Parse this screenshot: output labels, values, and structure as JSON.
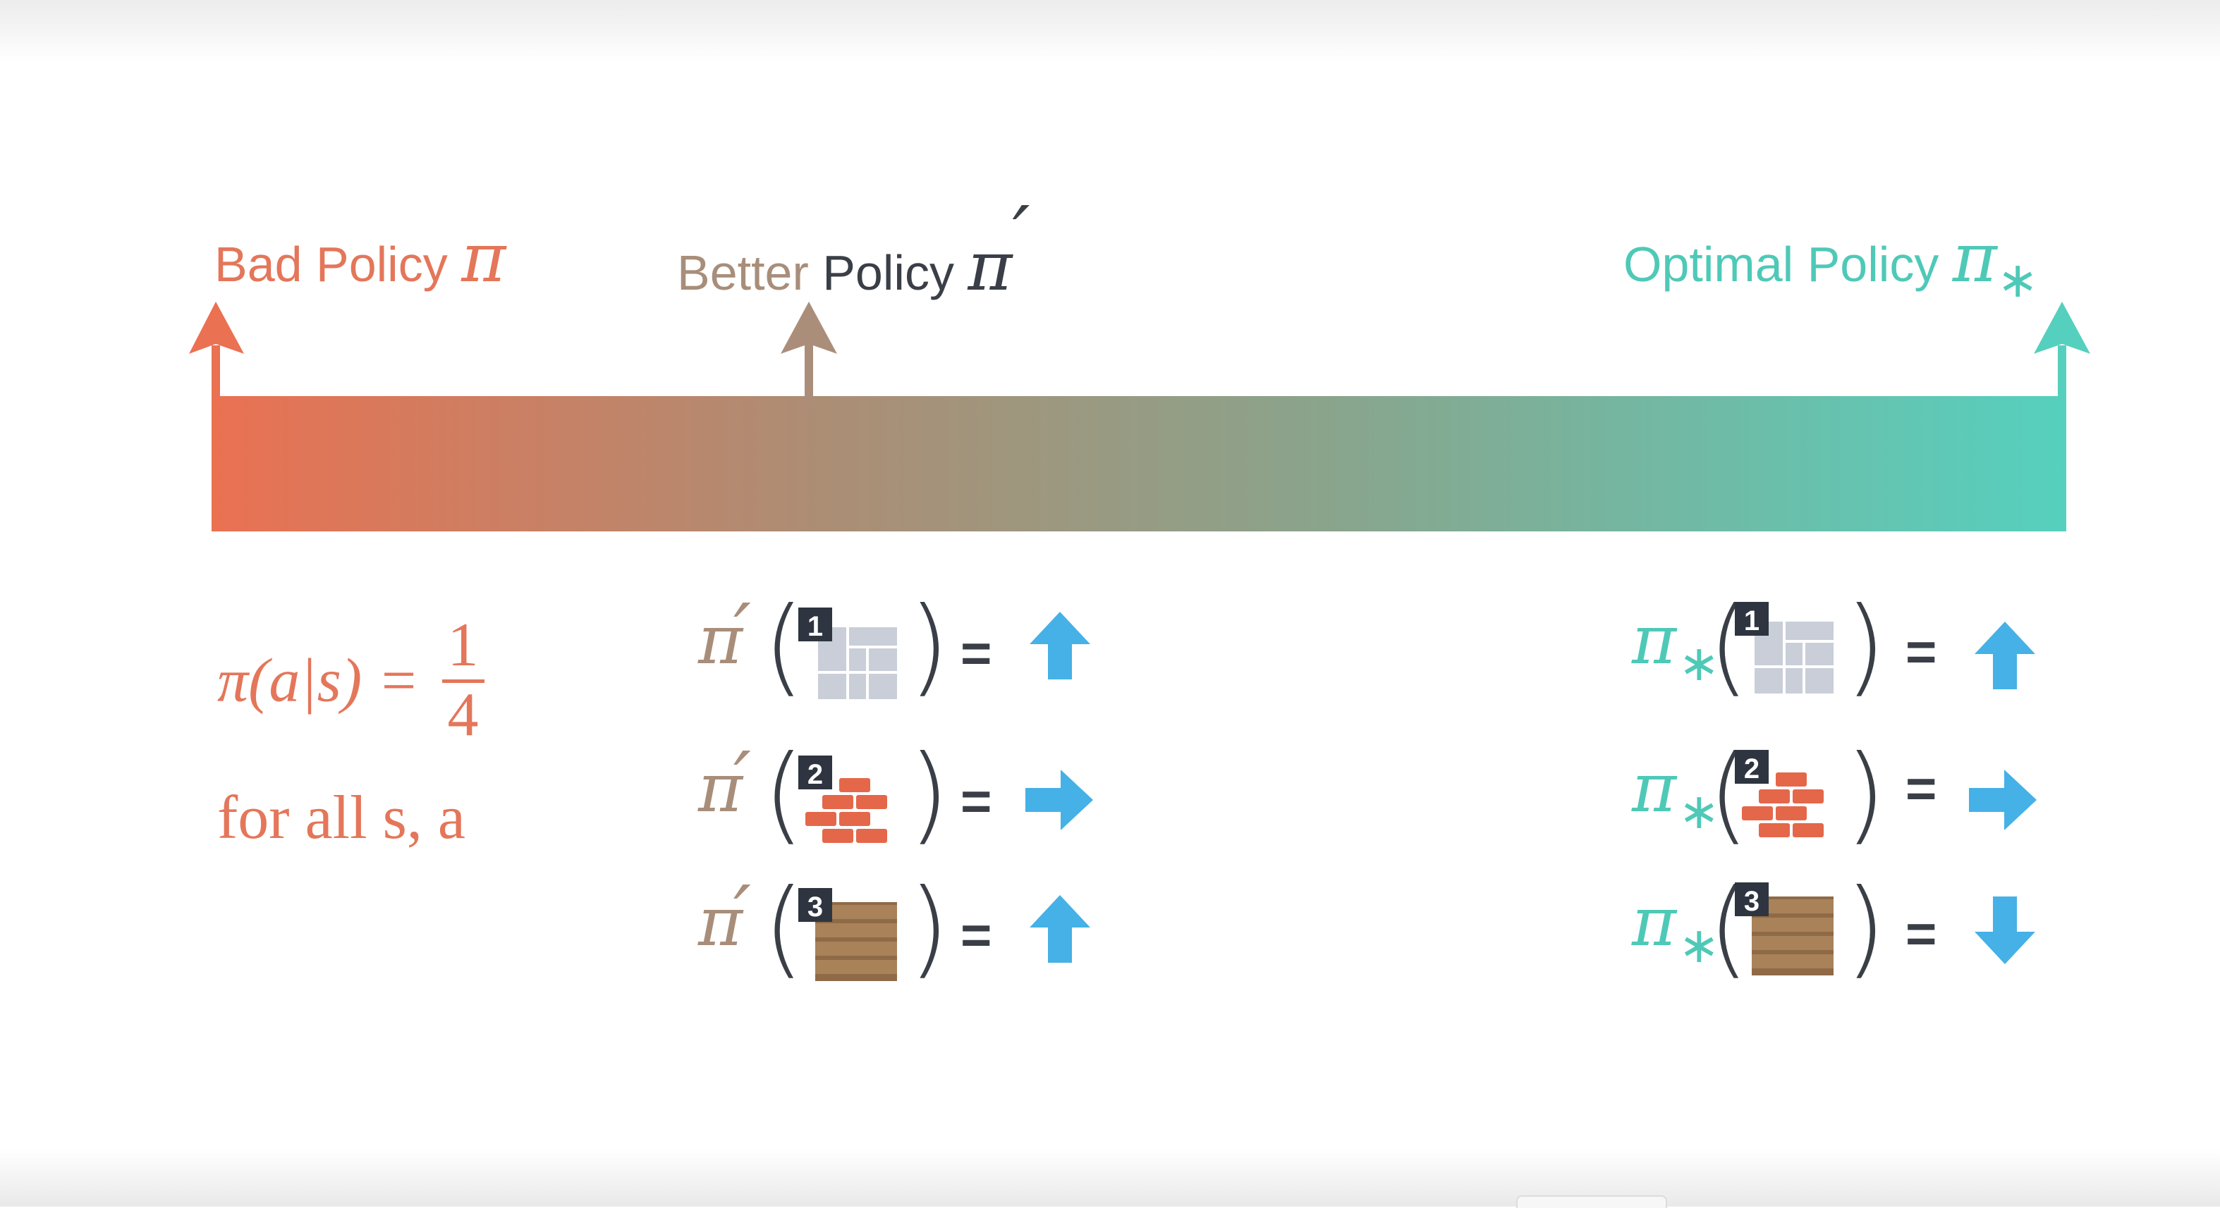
{
  "colors": {
    "bad": "#e4765a",
    "better": "#a88e7a",
    "better_dark": "#3a3f47",
    "optimal": "#4fc9b7",
    "action_arrow": "#45b1e6"
  },
  "axis": {
    "bad": {
      "word1": "Bad Policy",
      "symbol": "π"
    },
    "better": {
      "word1": "Better",
      "word2": "Policy",
      "symbol": "π",
      "prime": "′"
    },
    "optimal": {
      "word1": "Optimal Policy",
      "symbol": "π",
      "sub": "∗"
    }
  },
  "bad_policy": {
    "lhs": "π(a|s) =",
    "numerator": "1",
    "denominator": "4",
    "forall": "for all s, a"
  },
  "better_policy": {
    "symbol": "π",
    "prime": "′",
    "open_paren": "(",
    "close_paren": ")",
    "equals": "=",
    "rows": [
      {
        "state": "1",
        "tile": "gray-wall-icon",
        "action": "up"
      },
      {
        "state": "2",
        "tile": "brick-icon",
        "action": "right"
      },
      {
        "state": "3",
        "tile": "wood-icon",
        "action": "up"
      }
    ]
  },
  "optimal_policy": {
    "symbol": "π",
    "sub": "∗",
    "open_paren": "(",
    "close_paren": ")",
    "equals": "=",
    "rows": [
      {
        "state": "1",
        "tile": "gray-wall-icon",
        "action": "up"
      },
      {
        "state": "2",
        "tile": "brick-icon",
        "action": "right"
      },
      {
        "state": "3",
        "tile": "wood-icon",
        "action": "down"
      }
    ]
  }
}
